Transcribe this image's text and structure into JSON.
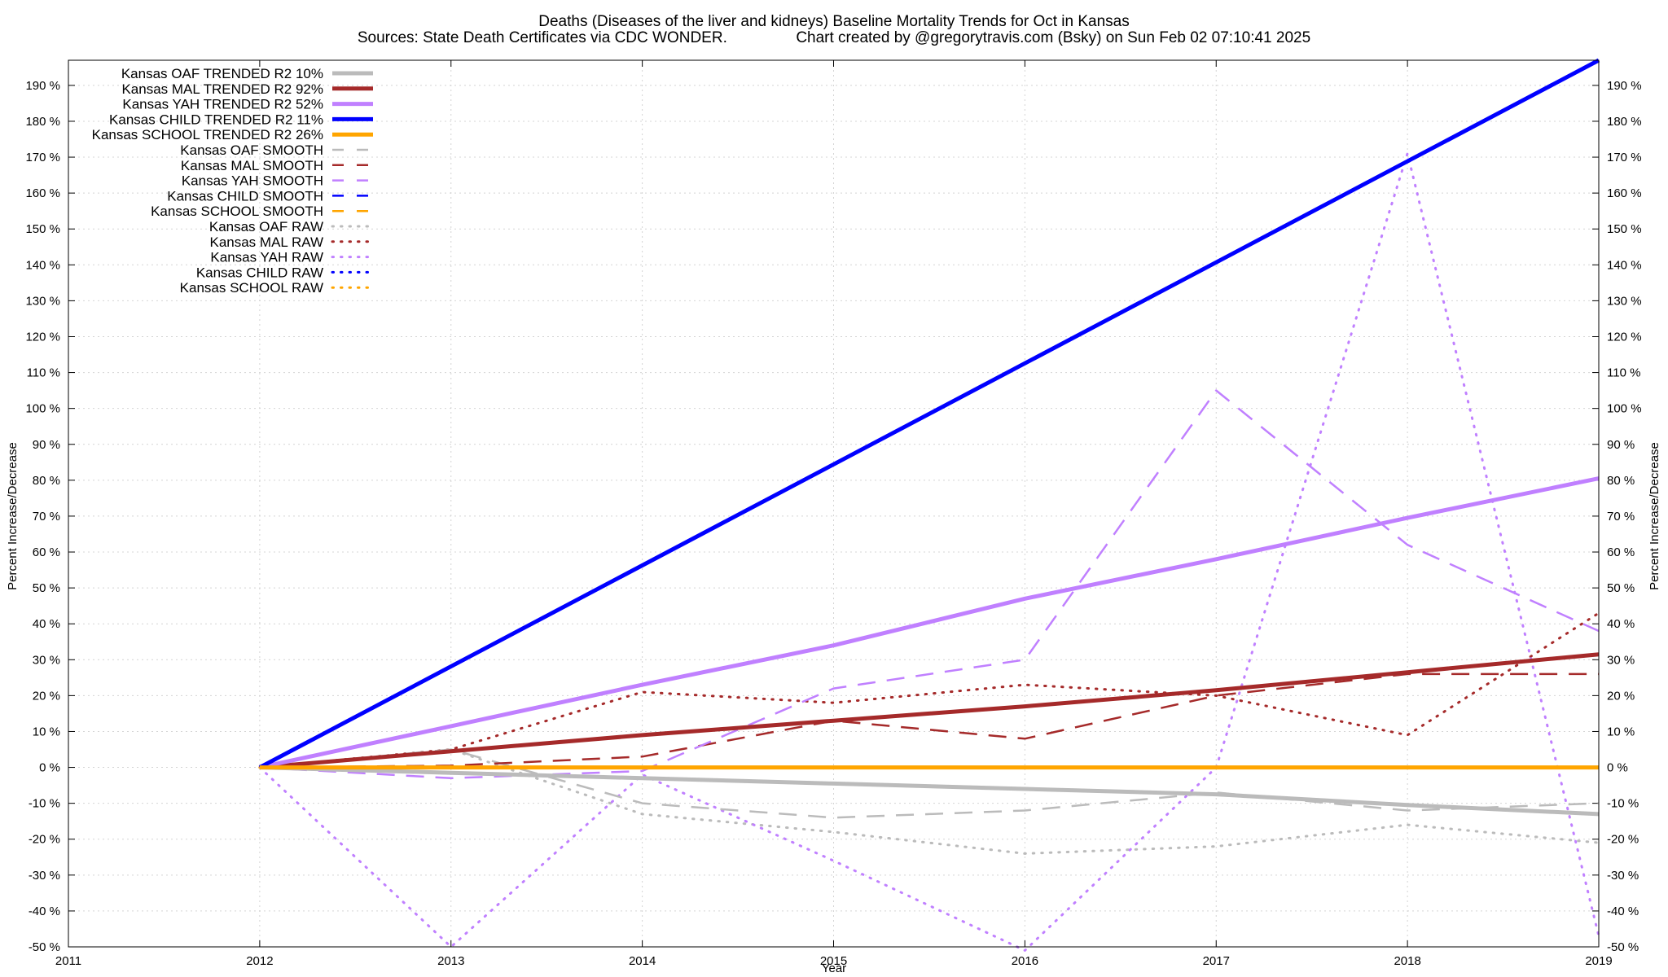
{
  "chart_data": {
    "type": "line",
    "title": "Deaths (Diseases of the liver and kidneys)  Baseline Mortality Trends for Oct in Kansas",
    "subtitle": "Sources: State Death Certificates via CDC WONDER.                Chart created by @gregorytravis.com (Bsky) on Sun Feb 02 07:10:41 2025",
    "xlabel": "Year",
    "ylabel": "Percent Increase/Decrease",
    "y2label": "Percent Increase/Decrease",
    "xlim": [
      2011,
      2019
    ],
    "ylim": [
      -50,
      197
    ],
    "x_ticks": [
      2011,
      2012,
      2013,
      2014,
      2015,
      2016,
      2017,
      2018,
      2019
    ],
    "y_ticks": [
      -50,
      -40,
      -30,
      -20,
      -10,
      0,
      10,
      20,
      30,
      40,
      50,
      60,
      70,
      80,
      90,
      100,
      110,
      120,
      130,
      140,
      150,
      160,
      170,
      180,
      190
    ],
    "y_tick_suffix": " %",
    "grid": true,
    "legend_position": "top-left",
    "series": [
      {
        "name": "Kansas OAF TRENDED R2  10%",
        "style": "trend",
        "color": "#bbbbbb",
        "x": [
          2012,
          2013,
          2014,
          2015,
          2016,
          2017,
          2018,
          2019
        ],
        "y": [
          0,
          -1.5,
          -3,
          -4.5,
          -6,
          -7.5,
          -10.5,
          -13
        ]
      },
      {
        "name": "Kansas MAL TRENDED R2  92%",
        "style": "trend",
        "color": "#a52a2a",
        "x": [
          2012,
          2013,
          2014,
          2015,
          2016,
          2017,
          2018,
          2019
        ],
        "y": [
          0,
          4.5,
          9,
          13,
          17,
          21.5,
          26.5,
          31.5
        ]
      },
      {
        "name": "Kansas YAH TRENDED R2  52%",
        "style": "trend",
        "color": "#c080ff",
        "x": [
          2012,
          2013,
          2014,
          2015,
          2016,
          2017,
          2018,
          2019
        ],
        "y": [
          0,
          11.5,
          23,
          34,
          47,
          58,
          69.5,
          80.5
        ]
      },
      {
        "name": "Kansas CHILD TRENDED R2  11%",
        "style": "trend",
        "color": "#0000ff",
        "x": [
          2012,
          2019
        ],
        "y": [
          0,
          197
        ]
      },
      {
        "name": "Kansas SCHOOL TRENDED R2  26%",
        "style": "trend",
        "color": "#ffa500",
        "x": [
          2012,
          2019
        ],
        "y": [
          0,
          0
        ]
      },
      {
        "name": "Kansas OAF SMOOTH",
        "style": "smooth",
        "color": "#bbbbbb",
        "x": [
          2012,
          2013,
          2014,
          2015,
          2016,
          2017,
          2018,
          2019
        ],
        "y": [
          0,
          5,
          -10,
          -14,
          -12,
          -7,
          -12,
          -10
        ]
      },
      {
        "name": "Kansas MAL SMOOTH",
        "style": "smooth",
        "color": "#a52a2a",
        "x": [
          2012,
          2013,
          2014,
          2015,
          2016,
          2017,
          2018,
          2019
        ],
        "y": [
          0,
          0.5,
          3,
          13,
          8,
          20,
          26,
          26
        ]
      },
      {
        "name": "Kansas YAH SMOOTH",
        "style": "smooth",
        "color": "#c080ff",
        "x": [
          2012,
          2013,
          2014,
          2015,
          2016,
          2017,
          2018,
          2019
        ],
        "y": [
          0,
          -3,
          -1,
          22,
          30,
          105,
          62,
          38
        ]
      },
      {
        "name": "Kansas CHILD SMOOTH",
        "style": "smooth",
        "color": "#0000ff",
        "x": [],
        "y": []
      },
      {
        "name": "Kansas SCHOOL SMOOTH",
        "style": "smooth",
        "color": "#ffa500",
        "x": [
          2012,
          2019
        ],
        "y": [
          0,
          0
        ]
      },
      {
        "name": "Kansas OAF RAW",
        "style": "raw",
        "color": "#bbbbbb",
        "x": [
          2012,
          2013,
          2014,
          2015,
          2016,
          2017,
          2018,
          2019
        ],
        "y": [
          0,
          5,
          -13,
          -18,
          -24,
          -22,
          -16,
          -21
        ]
      },
      {
        "name": "Kansas MAL RAW",
        "style": "raw",
        "color": "#a52a2a",
        "x": [
          2012,
          2013,
          2014,
          2015,
          2016,
          2017,
          2018,
          2019
        ],
        "y": [
          0,
          5,
          21,
          18,
          23,
          20,
          9,
          43
        ]
      },
      {
        "name": "Kansas YAH RAW",
        "style": "raw",
        "color": "#c080ff",
        "x": [
          2012,
          2013,
          2014,
          2015,
          2016,
          2017,
          2018,
          2019
        ],
        "y": [
          0,
          -50,
          -2,
          -26,
          -51,
          0,
          171,
          -47
        ]
      },
      {
        "name": "Kansas CHILD RAW",
        "style": "raw",
        "color": "#0000ff",
        "x": [],
        "y": []
      },
      {
        "name": "Kansas SCHOOL RAW",
        "style": "raw",
        "color": "#ffa500",
        "x": [
          2012,
          2019
        ],
        "y": [
          0,
          0
        ]
      }
    ]
  }
}
